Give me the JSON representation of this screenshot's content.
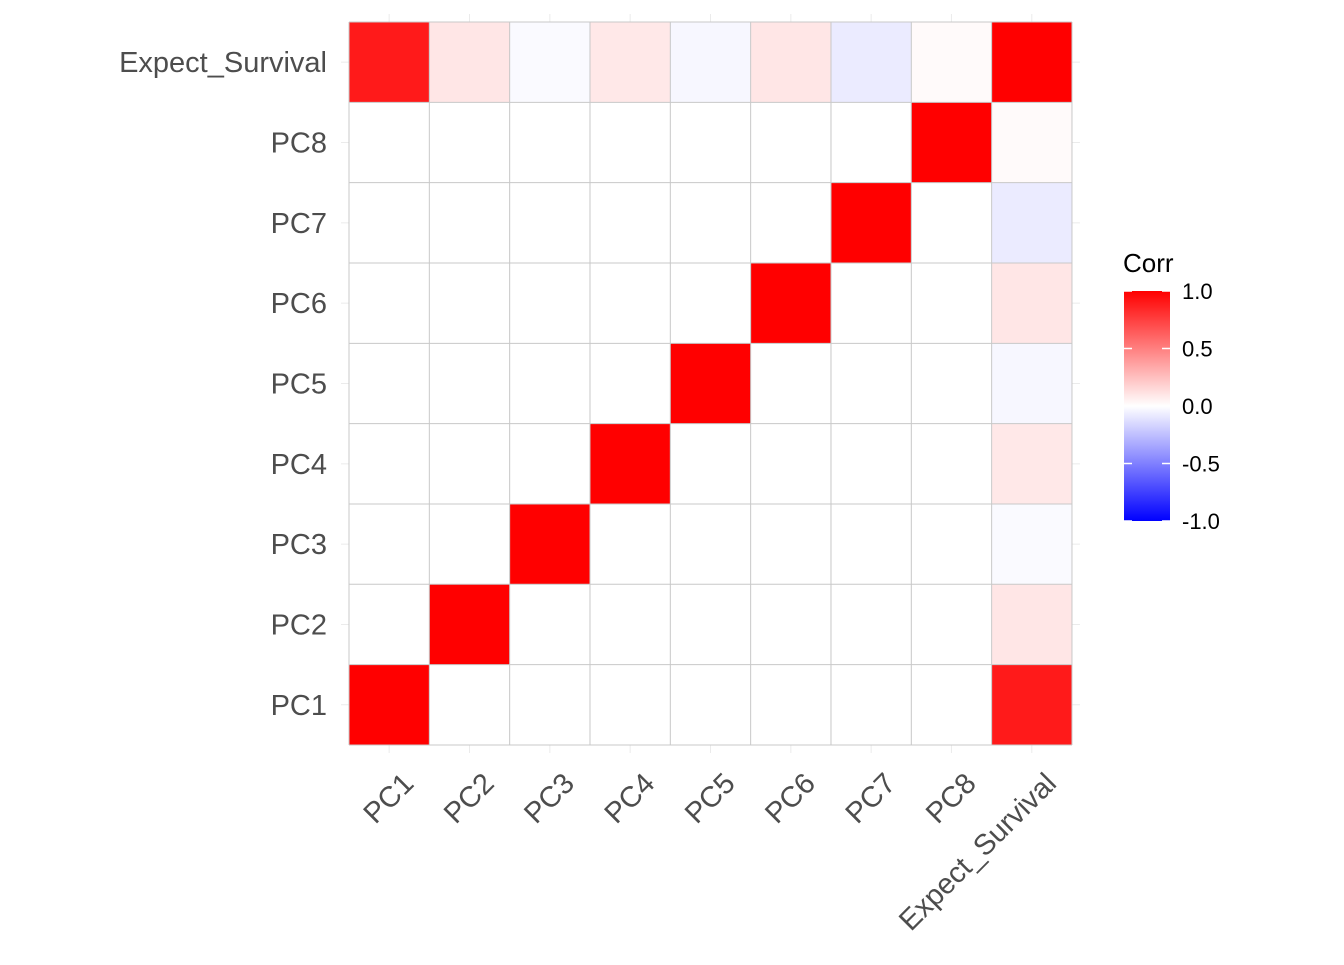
{
  "chart_data": {
    "type": "heatmap",
    "x_categories": [
      "PC1",
      "PC2",
      "PC3",
      "PC4",
      "PC5",
      "PC6",
      "PC7",
      "PC8",
      "Expect_Survival"
    ],
    "y_categories": [
      "PC1",
      "PC2",
      "PC3",
      "PC4",
      "PC5",
      "PC6",
      "PC7",
      "PC8",
      "Expect_Survival"
    ],
    "cells": [
      {
        "x": "PC1",
        "y": "PC1",
        "value": 1.0
      },
      {
        "x": "PC2",
        "y": "PC2",
        "value": 1.0
      },
      {
        "x": "PC3",
        "y": "PC3",
        "value": 1.0
      },
      {
        "x": "PC4",
        "y": "PC4",
        "value": 1.0
      },
      {
        "x": "PC5",
        "y": "PC5",
        "value": 1.0
      },
      {
        "x": "PC6",
        "y": "PC6",
        "value": 1.0
      },
      {
        "x": "PC7",
        "y": "PC7",
        "value": 1.0
      },
      {
        "x": "PC8",
        "y": "PC8",
        "value": 1.0
      },
      {
        "x": "Expect_Survival",
        "y": "Expect_Survival",
        "value": 1.0
      },
      {
        "x": "Expect_Survival",
        "y": "PC1",
        "value": 0.9
      },
      {
        "x": "Expect_Survival",
        "y": "PC2",
        "value": 0.1
      },
      {
        "x": "Expect_Survival",
        "y": "PC3",
        "value": -0.02
      },
      {
        "x": "Expect_Survival",
        "y": "PC4",
        "value": 0.09
      },
      {
        "x": "Expect_Survival",
        "y": "PC5",
        "value": -0.03
      },
      {
        "x": "Expect_Survival",
        "y": "PC6",
        "value": 0.1
      },
      {
        "x": "Expect_Survival",
        "y": "PC7",
        "value": -0.08
      },
      {
        "x": "Expect_Survival",
        "y": "PC8",
        "value": 0.02
      },
      {
        "x": "PC1",
        "y": "Expect_Survival",
        "value": 0.9
      },
      {
        "x": "PC2",
        "y": "Expect_Survival",
        "value": 0.1
      },
      {
        "x": "PC3",
        "y": "Expect_Survival",
        "value": -0.02
      },
      {
        "x": "PC4",
        "y": "Expect_Survival",
        "value": 0.09
      },
      {
        "x": "PC5",
        "y": "Expect_Survival",
        "value": -0.03
      },
      {
        "x": "PC6",
        "y": "Expect_Survival",
        "value": 0.1
      },
      {
        "x": "PC7",
        "y": "Expect_Survival",
        "value": -0.08
      },
      {
        "x": "PC8",
        "y": "Expect_Survival",
        "value": 0.02
      }
    ],
    "empty_cell_meaning": "cells not listed are left blank (white)",
    "legend": {
      "title": "Corr",
      "ticks": [
        "1.0",
        "0.5",
        "0.0",
        "-0.5",
        "-1.0"
      ],
      "tick_values": [
        1.0,
        0.5,
        0.0,
        -0.5,
        -1.0
      ],
      "range": [
        -1,
        1
      ],
      "colors": {
        "low": "#0000ff",
        "mid": "#ffffff",
        "high": "#ff0000"
      },
      "placement": "right"
    },
    "grid": true,
    "title": "",
    "xlabel": "",
    "ylabel": ""
  }
}
